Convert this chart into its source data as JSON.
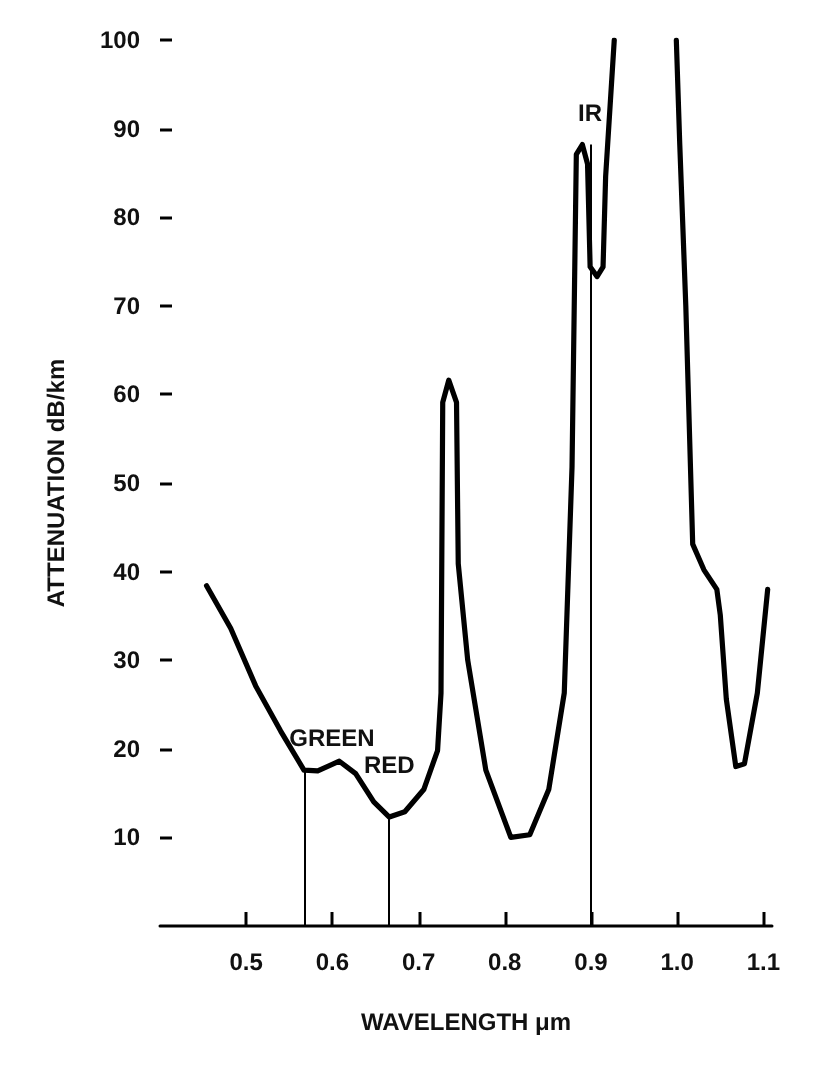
{
  "chart_data": {
    "type": "line",
    "xlabel": "WAVELENGTH μm",
    "ylabel": "ATTENUATION dB/km",
    "xlim": [
      0.4,
      1.11
    ],
    "xticks": [
      0.5,
      0.6,
      0.7,
      0.8,
      0.9,
      {
        "value": 1,
        "label": "1.0"
      },
      1.1
    ],
    "ylim": [
      0,
      100
    ],
    "yticks": [
      10,
      20,
      30,
      40,
      50,
      60,
      70,
      80,
      90,
      100
    ],
    "grid": false,
    "marker": "none",
    "line_style": "solid",
    "series": [
      {
        "color": "#000000",
        "x": [
          0.454,
          0.482,
          0.511,
          0.54,
          0.567,
          0.583,
          0.608,
          0.627,
          0.648,
          0.666,
          0.684,
          0.706,
          0.722,
          0.726,
          0.728,
          0.735,
          0.744,
          0.746,
          0.757,
          0.778,
          0.807,
          0.829,
          0.851,
          0.869,
          0.878,
          0.883,
          0.89,
          0.896,
          0.899,
          0.907,
          0.914,
          0.917,
          0.927,
          0.96,
          0.999,
          1.003,
          1.01,
          1.018,
          1.031,
          1.046,
          1.05,
          1.057,
          1.068,
          1.078,
          1.093,
          1.105
        ],
        "values": [
          38.4,
          33.6,
          27.1,
          22,
          17.6,
          17.5,
          18.6,
          17.2,
          14,
          12.3,
          12.9,
          15.4,
          19.8,
          26.3,
          59.1,
          61.6,
          59.1,
          40.9,
          30,
          17.6,
          10,
          10.3,
          15.4,
          26.3,
          51.8,
          87.1,
          88.2,
          86,
          74.4,
          73.3,
          74.4,
          84.6,
          100,
          null,
          100,
          88.2,
          70,
          43.1,
          40.2,
          38,
          35.1,
          25.6,
          18,
          18.3,
          26.3,
          38
        ]
      }
    ],
    "ref_lines": [
      {
        "axis": "x",
        "value": 0.567,
        "label": "GREEN"
      },
      {
        "axis": "x",
        "value": 0.666,
        "label": "RED"
      },
      {
        "axis": "x",
        "value": 0.899,
        "label": "IR"
      }
    ]
  }
}
